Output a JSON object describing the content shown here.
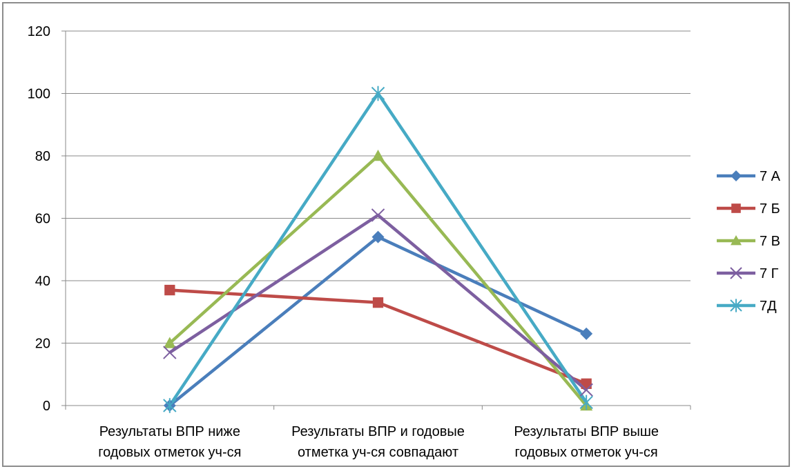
{
  "chart_data": {
    "type": "line",
    "title": "",
    "xlabel": "",
    "ylabel": "",
    "categories": [
      [
        "Результаты ВПР ниже",
        "годовых отметок уч-ся"
      ],
      [
        "Результаты ВПР и годовые",
        "отметка уч-ся совпадают"
      ],
      [
        "Результаты ВПР выше",
        "годовых отметок уч-ся"
      ]
    ],
    "ylim": [
      0,
      120
    ],
    "yticks": [
      0,
      20,
      40,
      60,
      80,
      100,
      120
    ],
    "grid": true,
    "legend_position": "right",
    "series": [
      {
        "name": "7 А",
        "values": [
          0,
          54,
          23
        ],
        "color": "#4a7ebb",
        "marker": "diamond"
      },
      {
        "name": "7 Б",
        "values": [
          37,
          33,
          7
        ],
        "color": "#be4b48",
        "marker": "square"
      },
      {
        "name": "7 В",
        "values": [
          20,
          80,
          0
        ],
        "color": "#98b954",
        "marker": "triangle"
      },
      {
        "name": "7 Г",
        "values": [
          17,
          61,
          5
        ],
        "color": "#7d5fa0",
        "marker": "x"
      },
      {
        "name": "7Д",
        "values": [
          0,
          100,
          1
        ],
        "color": "#46aac5",
        "marker": "star"
      }
    ]
  }
}
